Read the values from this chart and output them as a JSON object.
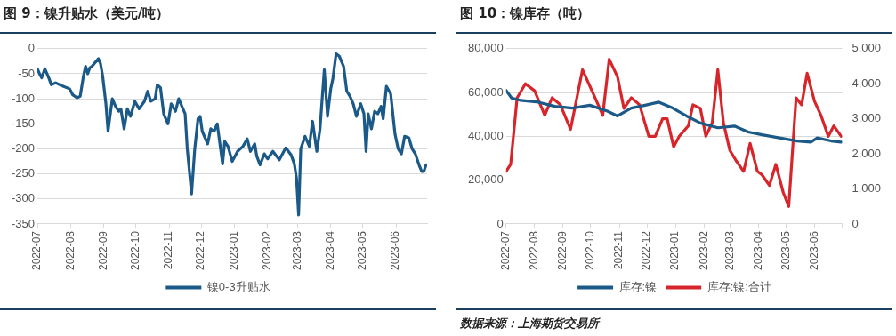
{
  "chart_data": [
    {
      "type": "line",
      "title": "图 9：镍升贴水（美元/吨）",
      "x": [
        "2022-07-01",
        "2022-07-03",
        "2022-07-05",
        "2022-07-08",
        "2022-07-12",
        "2022-07-14",
        "2022-07-18",
        "2022-07-24",
        "2022-07-31",
        "2022-08-03",
        "2022-08-07",
        "2022-08-10",
        "2022-08-13",
        "2022-08-15",
        "2022-08-17",
        "2022-08-19",
        "2022-08-21",
        "2022-08-25",
        "2022-08-27",
        "2022-08-29",
        "2022-08-31",
        "2022-09-03",
        "2022-09-05",
        "2022-09-09",
        "2022-09-12",
        "2022-09-15",
        "2022-09-17",
        "2022-09-20",
        "2022-09-23",
        "2022-09-26",
        "2022-09-30",
        "2022-10-04",
        "2022-10-09",
        "2022-10-12",
        "2022-10-15",
        "2022-10-19",
        "2022-10-21",
        "2022-10-24",
        "2022-10-27",
        "2022-10-31",
        "2022-11-03",
        "2022-11-07",
        "2022-11-10",
        "2022-11-16",
        "2022-11-18",
        "2022-11-22",
        "2022-11-25",
        "2022-11-28",
        "2022-11-30",
        "2022-12-02",
        "2022-12-07",
        "2022-12-10",
        "2022-12-13",
        "2022-12-16",
        "2022-12-21",
        "2022-12-23",
        "2022-12-26",
        "2022-12-30",
        "2023-01-04",
        "2023-01-09",
        "2023-01-13",
        "2023-01-16",
        "2023-01-20",
        "2023-01-22",
        "2023-01-25",
        "2023-01-29",
        "2023-02-01",
        "2023-02-06",
        "2023-02-12",
        "2023-02-18",
        "2023-02-23",
        "2023-02-26",
        "2023-02-28",
        "2023-03-02",
        "2023-03-04",
        "2023-03-08",
        "2023-03-12",
        "2023-03-15",
        "2023-03-19",
        "2023-03-22",
        "2023-03-24",
        "2023-03-26",
        "2023-03-29",
        "2023-04-01",
        "2023-04-03",
        "2023-04-06",
        "2023-04-09",
        "2023-04-13",
        "2023-04-16",
        "2023-04-19",
        "2023-04-22",
        "2023-04-25",
        "2023-04-29",
        "2023-05-02",
        "2023-05-04",
        "2023-05-06",
        "2023-05-09",
        "2023-05-12",
        "2023-05-15",
        "2023-05-18",
        "2023-05-20",
        "2023-05-23",
        "2023-05-27",
        "2023-05-31",
        "2023-06-03",
        "2023-06-06",
        "2023-06-09",
        "2023-06-13",
        "2023-06-16",
        "2023-06-19",
        "2023-06-23",
        "2023-06-25",
        "2023-06-27",
        "2023-06-29"
      ],
      "series": [
        {
          "name": "镍0-3升贴水",
          "color": "#1b5a88",
          "values": [
            -40,
            -50,
            -58,
            -40,
            -60,
            -72,
            -68,
            -74,
            -80,
            -92,
            -98,
            -95,
            -55,
            -35,
            -50,
            -38,
            -35,
            -25,
            -20,
            -30,
            -55,
            -110,
            -165,
            -100,
            -115,
            -125,
            -120,
            -160,
            -120,
            -135,
            -105,
            -120,
            -105,
            -85,
            -105,
            -100,
            -72,
            -78,
            -130,
            -150,
            -110,
            -125,
            -100,
            -130,
            -200,
            -290,
            -200,
            -140,
            -135,
            -165,
            -190,
            -160,
            -165,
            -150,
            -230,
            -185,
            -195,
            -225,
            -205,
            -195,
            -180,
            -205,
            -190,
            -215,
            -232,
            -210,
            -220,
            -205,
            -222,
            -198,
            -212,
            -230,
            -258,
            -332,
            -200,
            -175,
            -195,
            -145,
            -205,
            -160,
            -100,
            -42,
            -135,
            -80,
            -60,
            -10,
            -15,
            -35,
            -85,
            -95,
            -110,
            -135,
            -110,
            -130,
            -205,
            -130,
            -160,
            -125,
            -130,
            -115,
            -140,
            -75,
            -90,
            -170,
            -200,
            -210,
            -175,
            -178,
            -200,
            -210,
            -235,
            -245,
            -245,
            -232
          ]
        }
      ],
      "xlim": [
        "2022-07-01",
        "2023-06-30"
      ],
      "xticks": [
        {
          "value": "2022-07-01",
          "label": "2022-07"
        },
        {
          "value": "2022-08-01",
          "label": "2022-08"
        },
        {
          "value": "2022-09-01",
          "label": "2022-09"
        },
        {
          "value": "2022-10-01",
          "label": "2022-10"
        },
        {
          "value": "2022-11-01",
          "label": "2022-11"
        },
        {
          "value": "2022-12-01",
          "label": "2022-12"
        },
        {
          "value": "2023-01-01",
          "label": "2023-01"
        },
        {
          "value": "2023-02-01",
          "label": "2023-02"
        },
        {
          "value": "2023-03-01",
          "label": "2023-03"
        },
        {
          "value": "2023-04-01",
          "label": "2023-04"
        },
        {
          "value": "2023-05-01",
          "label": "2023-05"
        },
        {
          "value": "2023-06-01",
          "label": "2023-06"
        }
      ],
      "ylim": [
        -350,
        0
      ],
      "yticks": [
        -350,
        -300,
        -250,
        -200,
        -150,
        -100,
        -50,
        0
      ],
      "grid": "y",
      "legend": "bottom",
      "marker": "none",
      "line_style": "solid"
    },
    {
      "type": "line",
      "title": "图 10：镍库存（吨）",
      "series": [
        {
          "name": "库存:镍",
          "color": "#1b5a88",
          "x": [
            "2022-07-01",
            "2022-07-07",
            "2022-07-17",
            "2022-08-05",
            "2022-08-23",
            "2022-09-11",
            "2022-09-30",
            "2022-10-19",
            "2022-10-30",
            "2022-11-14",
            "2022-11-29",
            "2022-12-14",
            "2022-12-29",
            "2023-01-13",
            "2023-01-28",
            "2023-02-16",
            "2023-03-06",
            "2023-03-21",
            "2023-04-05",
            "2023-04-24",
            "2023-05-13",
            "2023-05-28",
            "2023-06-04",
            "2023-06-19",
            "2023-06-30"
          ],
          "values": [
            61000,
            57500,
            56400,
            55600,
            53700,
            52900,
            54200,
            51500,
            49300,
            52900,
            54200,
            55600,
            52900,
            49300,
            46100,
            43900,
            44700,
            42000,
            40700,
            39300,
            37900,
            37400,
            39300,
            37900,
            37400
          ]
        },
        {
          "name": "库存:镍:合计",
          "color": "#d7262b",
          "axis": "y2",
          "x": [
            "2022-07-01",
            "2022-07-06",
            "2022-07-13",
            "2022-07-22",
            "2022-08-01",
            "2022-08-12",
            "2022-08-20",
            "2022-08-29",
            "2022-09-09",
            "2022-09-22",
            "2022-10-04",
            "2022-10-14",
            "2022-10-21",
            "2022-10-30",
            "2022-11-06",
            "2022-11-14",
            "2022-11-23",
            "2022-12-03",
            "2022-12-10",
            "2022-12-18",
            "2022-12-23",
            "2022-12-30",
            "2023-01-05",
            "2023-01-15",
            "2023-01-20",
            "2023-01-28",
            "2023-02-03",
            "2023-02-10",
            "2023-02-16",
            "2023-02-22",
            "2023-03-01",
            "2023-03-08",
            "2023-03-16",
            "2023-03-23",
            "2023-03-31",
            "2023-04-05",
            "2023-04-13",
            "2023-04-20",
            "2023-04-28",
            "2023-05-04",
            "2023-05-12",
            "2023-05-18",
            "2023-05-24",
            "2023-06-01",
            "2023-06-08",
            "2023-06-16",
            "2023-06-22",
            "2023-06-30"
          ],
          "values": [
            1500,
            1700,
            3600,
            4000,
            3800,
            3100,
            3600,
            3400,
            2700,
            4400,
            3700,
            3100,
            4700,
            4200,
            3300,
            3600,
            3400,
            2500,
            2500,
            3000,
            3000,
            2200,
            2500,
            2800,
            3400,
            3300,
            2500,
            2900,
            4400,
            2900,
            2100,
            1800,
            1500,
            2300,
            1500,
            1400,
            1100,
            1700,
            900,
            500,
            3600,
            3400,
            4300,
            3500,
            3100,
            2500,
            2800,
            2500
          ]
        }
      ],
      "xlim": [
        "2022-07-01",
        "2023-07-01"
      ],
      "xticks": [
        {
          "value": "2022-07-01",
          "label": "2022-07"
        },
        {
          "value": "2022-08-01",
          "label": "2022-08"
        },
        {
          "value": "2022-09-01",
          "label": "2022-09"
        },
        {
          "value": "2022-10-01",
          "label": "2022-10"
        },
        {
          "value": "2022-11-01",
          "label": "2022-11"
        },
        {
          "value": "2022-12-01",
          "label": "2022-12"
        },
        {
          "value": "2023-01-01",
          "label": "2023-01"
        },
        {
          "value": "2023-02-01",
          "label": "2023-02"
        },
        {
          "value": "2023-03-01",
          "label": "2023-03"
        },
        {
          "value": "2023-04-01",
          "label": "2023-04"
        },
        {
          "value": "2023-05-01",
          "label": "2023-05"
        },
        {
          "value": "2023-06-01",
          "label": "2023-06"
        },
        {
          "value": "2023-07-01",
          "label": null
        }
      ],
      "ylim": [
        0,
        80000
      ],
      "yticks": [
        0,
        {
          "value": 20000,
          "label": "20,000"
        },
        {
          "value": 40000,
          "label": "40,000"
        },
        {
          "value": 60000,
          "label": "60,000"
        },
        {
          "value": 80000,
          "label": "80,000"
        }
      ],
      "y2lim": [
        0,
        5000
      ],
      "y2ticks": [
        0,
        {
          "value": 1000,
          "label": "1,000"
        },
        {
          "value": 2000,
          "label": "2,000"
        },
        {
          "value": 3000,
          "label": "3,000"
        },
        {
          "value": 4000,
          "label": "4,000"
        },
        {
          "value": 5000,
          "label": "5,000"
        }
      ],
      "grid": "y",
      "legend": "bottom",
      "marker": "none",
      "line_style": "solid",
      "annotations": [
        "数据来源：上海期货交易所"
      ]
    }
  ]
}
